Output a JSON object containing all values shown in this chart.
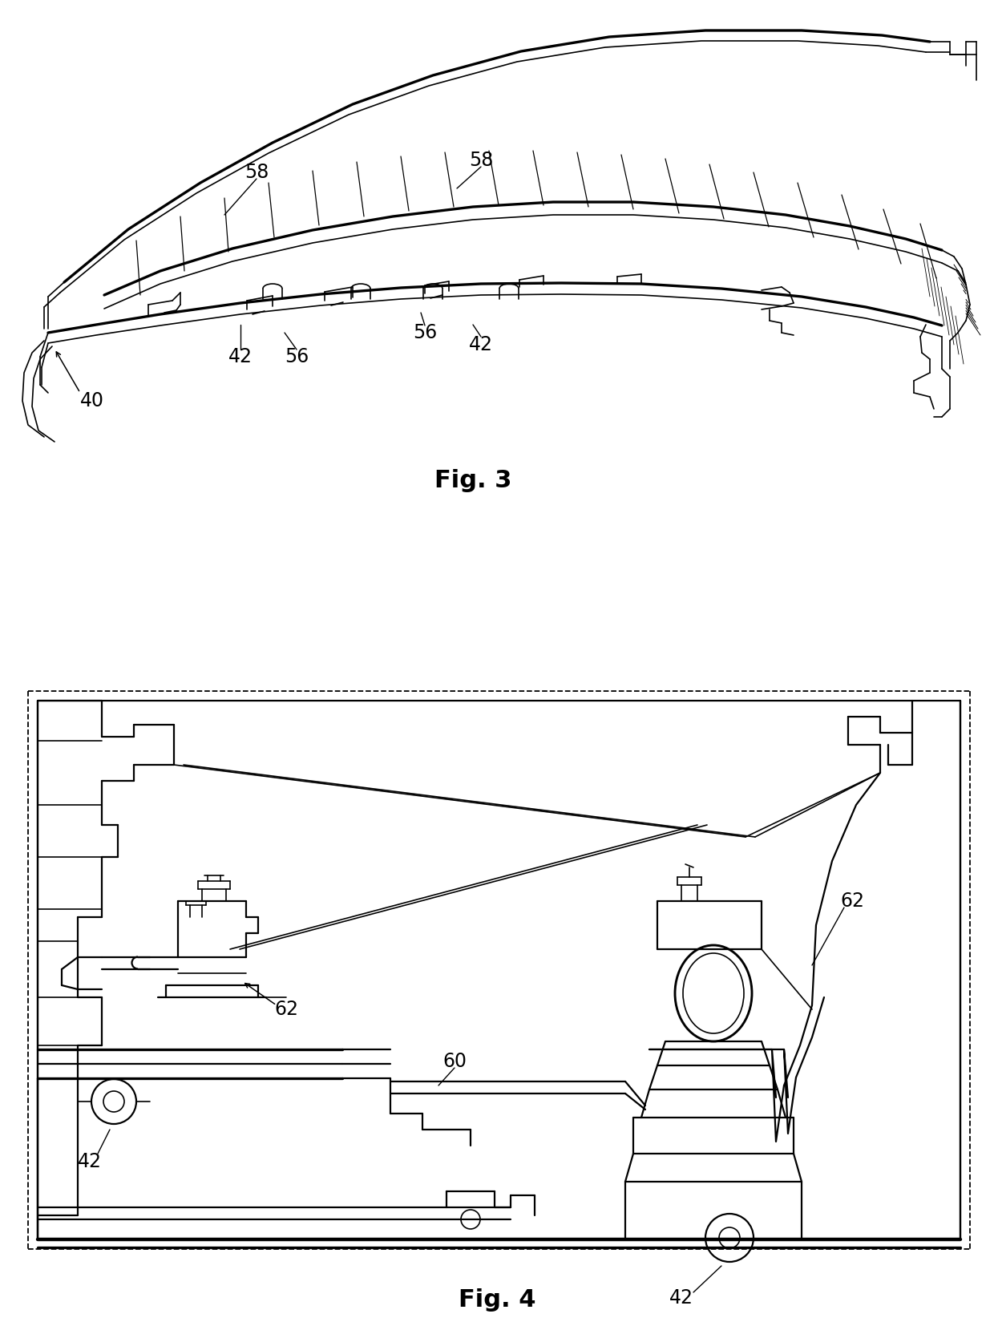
{
  "fig_width": 12.4,
  "fig_height": 16.64,
  "dpi": 100,
  "background_color": "#ffffff",
  "fig3_title": "Fig. 3",
  "fig4_title": "Fig. 4",
  "title_fontsize": 22,
  "label_fontsize": 17
}
